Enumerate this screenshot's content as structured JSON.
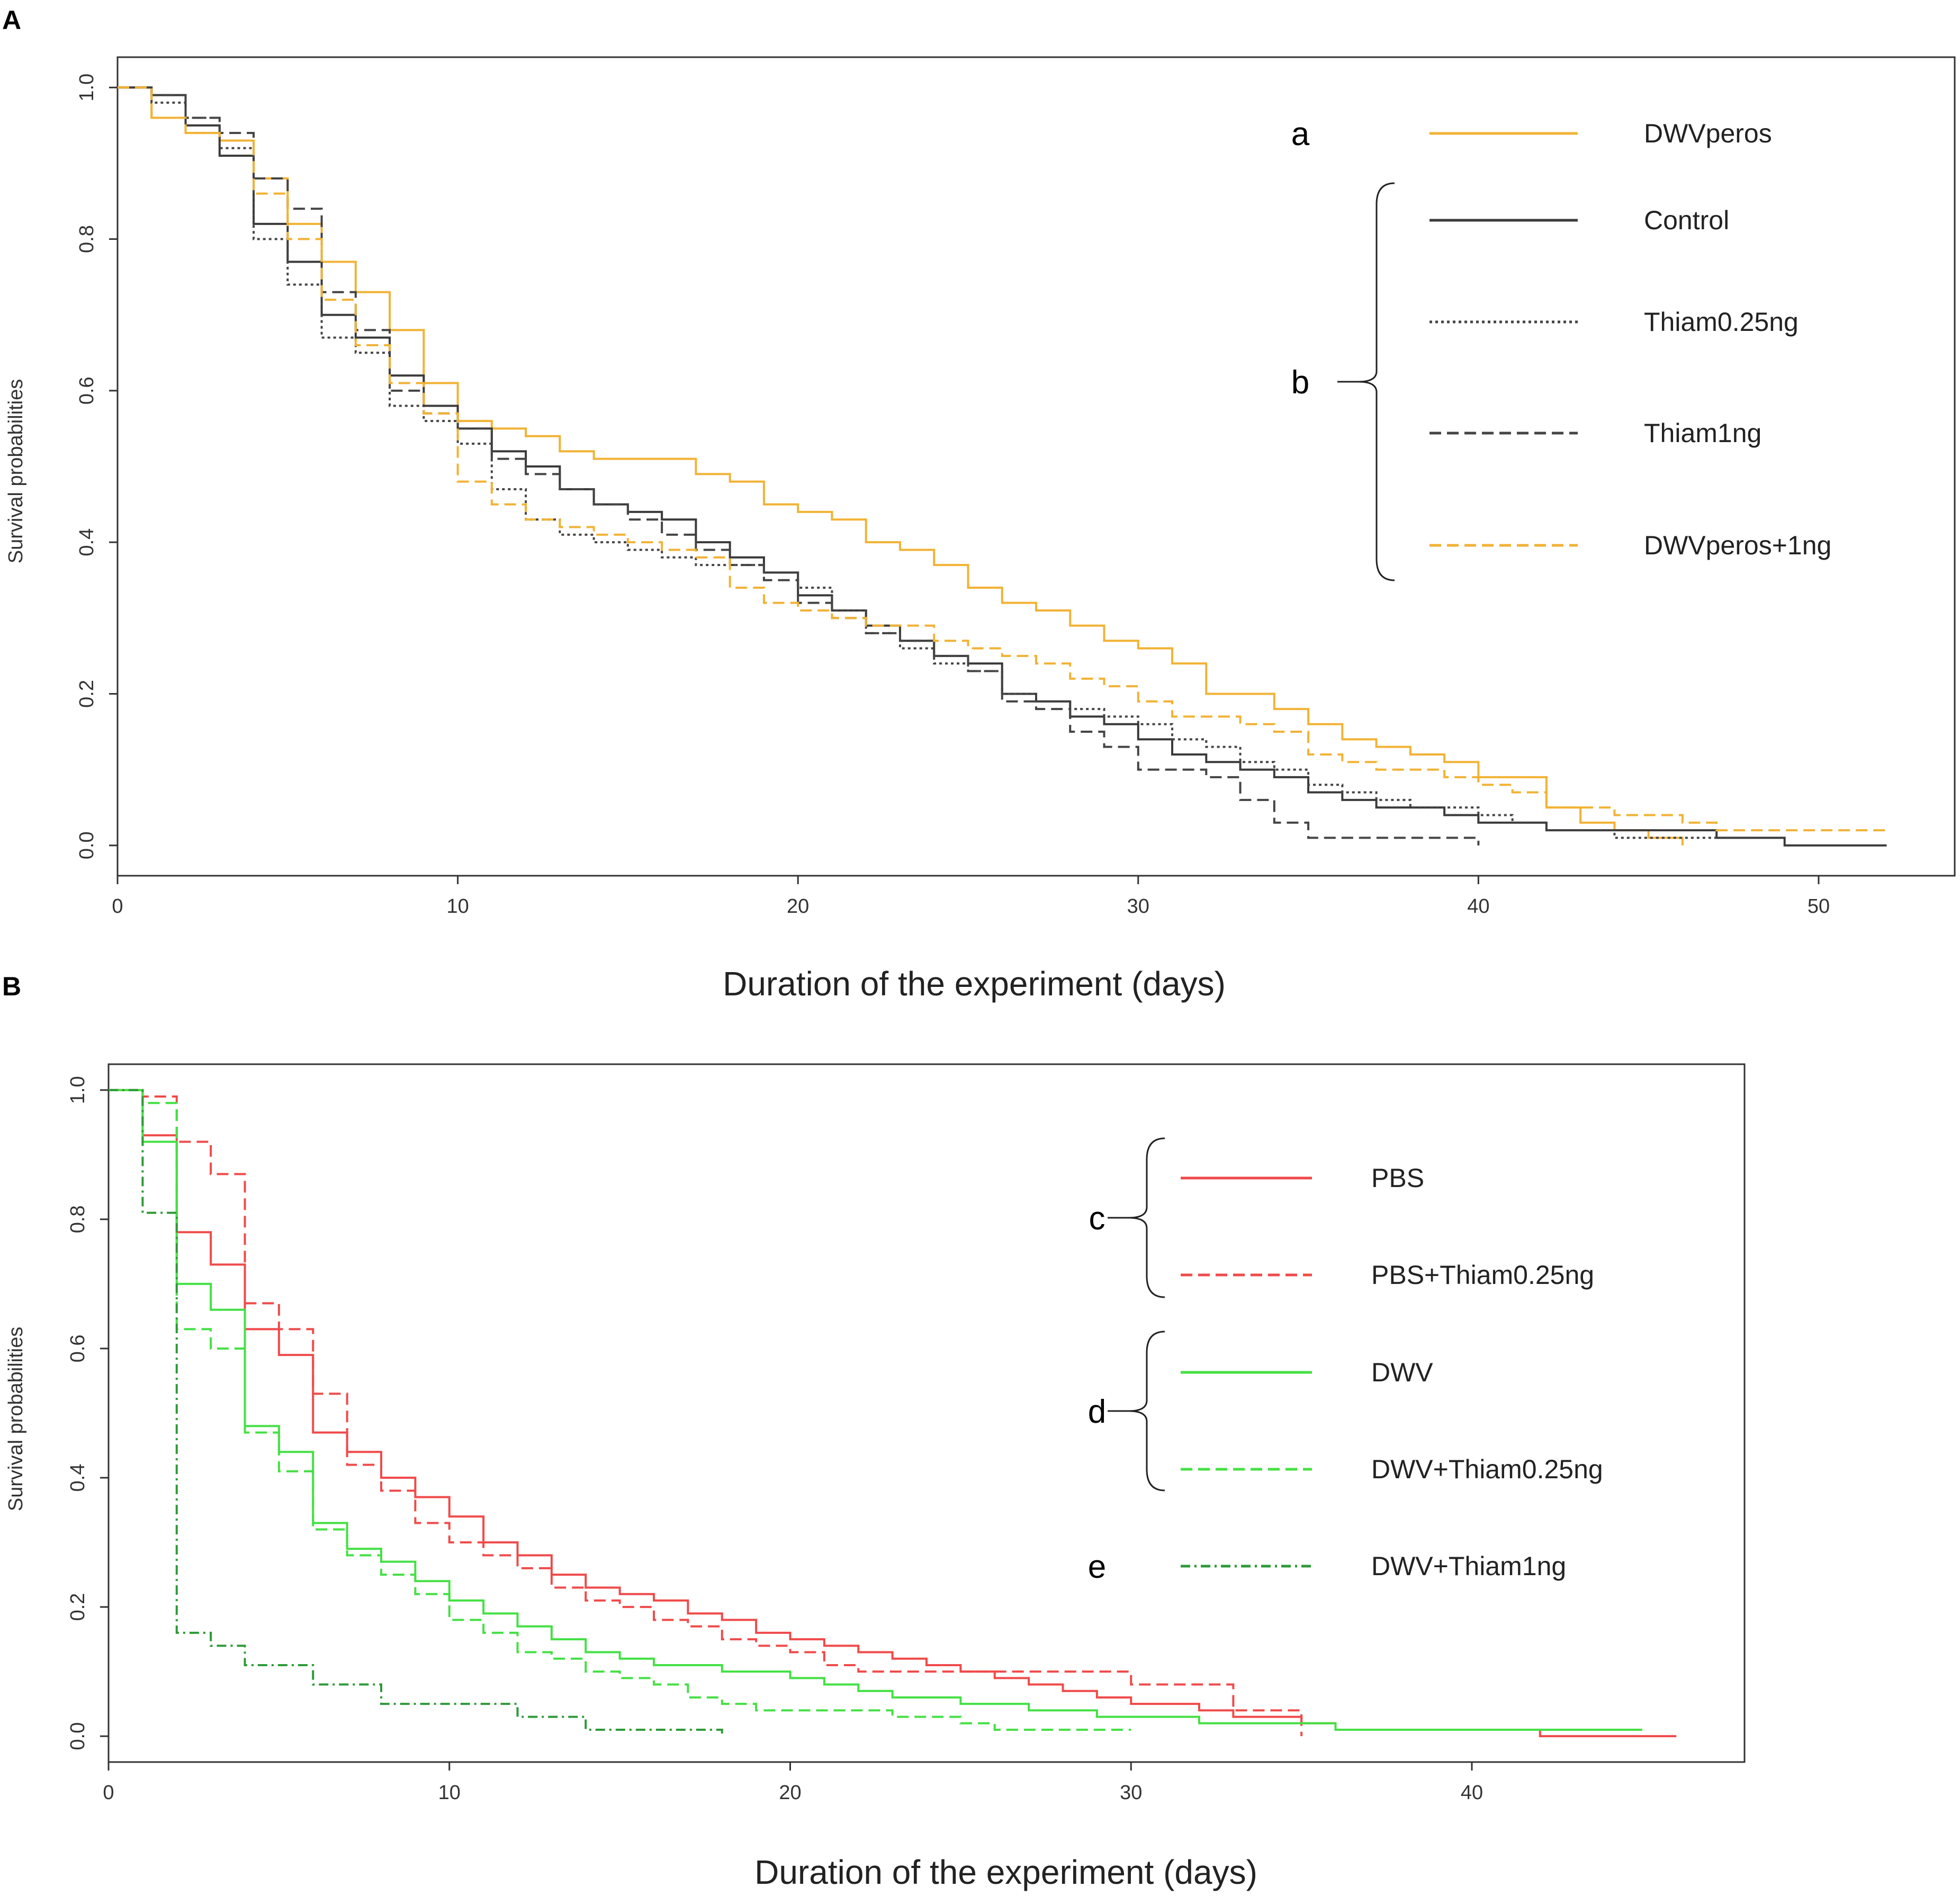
{
  "figure": {
    "panel_a": "A",
    "panel_b": "B"
  },
  "chart_data": [
    {
      "type": "line",
      "panel": "A",
      "xlabel": "Duration of the experiment (days)",
      "ylabel": "Survival probabilities",
      "xlim": [
        0,
        54
      ],
      "ylim": [
        -0.04,
        1.04
      ],
      "xticks": [
        0,
        10,
        20,
        30,
        40,
        50
      ],
      "yticks": [
        0.0,
        0.2,
        0.4,
        0.6,
        0.8,
        1.0
      ],
      "yticklabels": [
        "0.0",
        "0.2",
        "0.4",
        "0.6",
        "0.8",
        "1.0"
      ],
      "legend_position": "top-right",
      "groups": [
        {
          "label": "a",
          "members": [
            0
          ]
        },
        {
          "label": "b",
          "members": [
            1,
            2,
            3,
            4
          ]
        }
      ],
      "series": [
        {
          "name": "DWVperos",
          "color": "#f2b234",
          "style": "solid",
          "x": [
            0,
            1,
            2,
            3,
            4,
            5,
            6,
            7,
            8,
            9,
            10,
            11,
            12,
            13,
            14,
            15,
            16,
            17,
            18,
            19,
            20,
            21,
            22,
            23,
            24,
            25,
            26,
            27,
            28,
            29,
            30,
            31,
            32,
            33,
            34,
            35,
            36,
            37,
            38,
            39,
            40,
            41,
            42,
            43,
            44,
            45,
            46
          ],
          "y": [
            1.0,
            0.96,
            0.94,
            0.93,
            0.88,
            0.82,
            0.77,
            0.73,
            0.68,
            0.61,
            0.56,
            0.55,
            0.54,
            0.52,
            0.51,
            0.51,
            0.51,
            0.49,
            0.48,
            0.45,
            0.44,
            0.43,
            0.4,
            0.39,
            0.37,
            0.34,
            0.32,
            0.31,
            0.29,
            0.27,
            0.26,
            0.24,
            0.2,
            0.2,
            0.18,
            0.16,
            0.14,
            0.13,
            0.12,
            0.11,
            0.09,
            0.09,
            0.05,
            0.03,
            0.02,
            0.01,
            0.0
          ]
        },
        {
          "name": "Control",
          "color": "#3a3a3a",
          "style": "solid",
          "x": [
            0,
            1,
            2,
            3,
            4,
            5,
            6,
            7,
            8,
            9,
            10,
            11,
            12,
            13,
            14,
            15,
            16,
            17,
            18,
            19,
            20,
            21,
            22,
            23,
            24,
            25,
            26,
            27,
            28,
            29,
            30,
            31,
            32,
            33,
            34,
            35,
            36,
            37,
            38,
            39,
            40,
            41,
            42,
            43,
            44,
            45,
            46,
            47,
            48,
            49,
            50,
            51,
            52
          ],
          "y": [
            1.0,
            0.99,
            0.95,
            0.91,
            0.82,
            0.77,
            0.7,
            0.67,
            0.62,
            0.58,
            0.55,
            0.52,
            0.5,
            0.47,
            0.45,
            0.44,
            0.43,
            0.4,
            0.38,
            0.36,
            0.33,
            0.31,
            0.29,
            0.27,
            0.25,
            0.24,
            0.2,
            0.19,
            0.17,
            0.16,
            0.14,
            0.12,
            0.11,
            0.1,
            0.09,
            0.07,
            0.06,
            0.05,
            0.05,
            0.04,
            0.03,
            0.03,
            0.02,
            0.02,
            0.02,
            0.02,
            0.02,
            0.01,
            0.01,
            0.0,
            0.0,
            0.0,
            0.0
          ]
        },
        {
          "name": "Thiam0.25ng",
          "color": "#444444",
          "style": "dotted",
          "x": [
            0,
            1,
            2,
            3,
            4,
            5,
            6,
            7,
            8,
            9,
            10,
            11,
            12,
            13,
            14,
            15,
            16,
            17,
            18,
            19,
            20,
            21,
            22,
            23,
            24,
            25,
            26,
            27,
            28,
            29,
            30,
            31,
            32,
            33,
            34,
            35,
            36,
            37,
            38,
            39,
            40,
            41,
            42,
            43,
            44,
            45,
            46,
            47,
            48
          ],
          "y": [
            1.0,
            0.98,
            0.96,
            0.92,
            0.8,
            0.74,
            0.67,
            0.65,
            0.58,
            0.56,
            0.53,
            0.47,
            0.43,
            0.41,
            0.4,
            0.39,
            0.38,
            0.37,
            0.37,
            0.36,
            0.34,
            0.31,
            0.28,
            0.26,
            0.24,
            0.23,
            0.2,
            0.19,
            0.18,
            0.17,
            0.16,
            0.14,
            0.13,
            0.11,
            0.1,
            0.08,
            0.07,
            0.06,
            0.05,
            0.05,
            0.04,
            0.03,
            0.02,
            0.02,
            0.01,
            0.01,
            0.01,
            0.01,
            0.01
          ]
        },
        {
          "name": "Thiam1ng",
          "color": "#444444",
          "style": "dashed",
          "x": [
            0,
            1,
            2,
            3,
            4,
            5,
            6,
            7,
            8,
            9,
            10,
            11,
            12,
            13,
            14,
            15,
            16,
            17,
            18,
            19,
            20,
            21,
            22,
            23,
            24,
            25,
            26,
            27,
            28,
            29,
            30,
            31,
            32,
            33,
            34,
            35,
            36,
            37,
            38,
            39,
            40
          ],
          "y": [
            1.0,
            0.99,
            0.96,
            0.94,
            0.88,
            0.84,
            0.73,
            0.68,
            0.6,
            0.57,
            0.55,
            0.51,
            0.49,
            0.47,
            0.45,
            0.43,
            0.41,
            0.39,
            0.37,
            0.35,
            0.32,
            0.3,
            0.28,
            0.27,
            0.25,
            0.23,
            0.19,
            0.18,
            0.15,
            0.13,
            0.1,
            0.1,
            0.09,
            0.06,
            0.03,
            0.01,
            0.01,
            0.01,
            0.01,
            0.01,
            0.0
          ]
        },
        {
          "name": "DWVperos+1ng",
          "color": "#f2b234",
          "style": "dashed",
          "x": [
            0,
            1,
            2,
            3,
            4,
            5,
            6,
            7,
            8,
            9,
            10,
            11,
            12,
            13,
            14,
            15,
            16,
            17,
            18,
            19,
            20,
            21,
            22,
            23,
            24,
            25,
            26,
            27,
            28,
            29,
            30,
            31,
            32,
            33,
            34,
            35,
            36,
            37,
            38,
            39,
            40,
            41,
            42,
            43,
            44,
            45,
            46,
            47,
            48,
            49,
            50,
            51,
            52
          ],
          "y": [
            1.0,
            0.96,
            0.94,
            0.93,
            0.86,
            0.8,
            0.72,
            0.66,
            0.61,
            0.57,
            0.48,
            0.45,
            0.43,
            0.42,
            0.41,
            0.4,
            0.39,
            0.38,
            0.34,
            0.32,
            0.31,
            0.3,
            0.29,
            0.29,
            0.27,
            0.26,
            0.25,
            0.24,
            0.22,
            0.21,
            0.19,
            0.17,
            0.17,
            0.16,
            0.15,
            0.12,
            0.11,
            0.1,
            0.1,
            0.09,
            0.08,
            0.07,
            0.05,
            0.05,
            0.04,
            0.04,
            0.03,
            0.02,
            0.02,
            0.02,
            0.02,
            0.02,
            0.02
          ]
        }
      ]
    },
    {
      "type": "line",
      "panel": "B",
      "xlabel": "Duration of the experiment (days)",
      "ylabel": "Survival probabilities",
      "xlim": [
        0,
        48
      ],
      "ylim": [
        -0.04,
        1.04
      ],
      "xticks": [
        0,
        10,
        20,
        30,
        40
      ],
      "yticks": [
        0.0,
        0.2,
        0.4,
        0.6,
        0.8,
        1.0
      ],
      "yticklabels": [
        "0.0",
        "0.2",
        "0.4",
        "0.6",
        "0.8",
        "1.0"
      ],
      "legend_position": "right",
      "groups": [
        {
          "label": "c",
          "members": [
            0,
            1
          ]
        },
        {
          "label": "d",
          "members": [
            2,
            3
          ]
        },
        {
          "label": "e",
          "members": [
            4
          ]
        }
      ],
      "series": [
        {
          "name": "PBS",
          "color": "#f04a4a",
          "style": "solid",
          "x": [
            0,
            1,
            2,
            3,
            4,
            5,
            6,
            7,
            8,
            9,
            10,
            11,
            12,
            13,
            14,
            15,
            16,
            17,
            18,
            19,
            20,
            21,
            22,
            23,
            24,
            25,
            26,
            27,
            28,
            29,
            30,
            31,
            32,
            33,
            34,
            35,
            36,
            37,
            38,
            39,
            40,
            41,
            42,
            43,
            44,
            45,
            46
          ],
          "y": [
            1.0,
            0.93,
            0.78,
            0.73,
            0.63,
            0.59,
            0.47,
            0.44,
            0.4,
            0.37,
            0.34,
            0.3,
            0.28,
            0.25,
            0.23,
            0.22,
            0.21,
            0.19,
            0.18,
            0.16,
            0.15,
            0.14,
            0.13,
            0.12,
            0.11,
            0.1,
            0.09,
            0.08,
            0.07,
            0.06,
            0.05,
            0.05,
            0.04,
            0.03,
            0.03,
            0.02,
            0.01,
            0.01,
            0.01,
            0.01,
            0.01,
            0.01,
            0.0,
            0.0,
            0.0,
            0.0,
            0.0
          ]
        },
        {
          "name": "PBS+Thiam0.25ng",
          "color": "#f04a4a",
          "style": "dashed",
          "x": [
            0,
            1,
            2,
            3,
            4,
            5,
            6,
            7,
            8,
            9,
            10,
            11,
            12,
            13,
            14,
            15,
            16,
            17,
            18,
            19,
            20,
            21,
            22,
            23,
            24,
            25,
            26,
            27,
            28,
            29,
            30,
            31,
            32,
            33,
            34,
            35
          ],
          "y": [
            1.0,
            0.99,
            0.92,
            0.87,
            0.67,
            0.63,
            0.53,
            0.42,
            0.38,
            0.33,
            0.3,
            0.28,
            0.26,
            0.23,
            0.21,
            0.2,
            0.18,
            0.17,
            0.15,
            0.14,
            0.13,
            0.11,
            0.1,
            0.1,
            0.1,
            0.1,
            0.1,
            0.1,
            0.1,
            0.1,
            0.08,
            0.08,
            0.08,
            0.04,
            0.04,
            0.0
          ]
        },
        {
          "name": "DWV",
          "color": "#44e044",
          "style": "solid",
          "x": [
            0,
            1,
            2,
            3,
            4,
            5,
            6,
            7,
            8,
            9,
            10,
            11,
            12,
            13,
            14,
            15,
            16,
            17,
            18,
            19,
            20,
            21,
            22,
            23,
            24,
            25,
            26,
            27,
            28,
            29,
            30,
            31,
            32,
            33,
            34,
            35,
            36,
            37,
            38,
            39,
            40,
            41,
            42,
            43,
            44,
            45
          ],
          "y": [
            1.0,
            0.92,
            0.7,
            0.66,
            0.48,
            0.44,
            0.33,
            0.29,
            0.27,
            0.24,
            0.21,
            0.19,
            0.17,
            0.15,
            0.13,
            0.12,
            0.11,
            0.11,
            0.1,
            0.1,
            0.09,
            0.08,
            0.07,
            0.06,
            0.06,
            0.05,
            0.05,
            0.04,
            0.04,
            0.03,
            0.03,
            0.03,
            0.02,
            0.02,
            0.02,
            0.02,
            0.01,
            0.01,
            0.01,
            0.01,
            0.01,
            0.01,
            0.01,
            0.01,
            0.01,
            0.01
          ]
        },
        {
          "name": "DWV+Thiam0.25ng",
          "color": "#44e044",
          "style": "dashed",
          "x": [
            0,
            1,
            2,
            3,
            4,
            5,
            6,
            7,
            8,
            9,
            10,
            11,
            12,
            13,
            14,
            15,
            16,
            17,
            18,
            19,
            20,
            21,
            22,
            23,
            24,
            25,
            26,
            27,
            28,
            29,
            30
          ],
          "y": [
            1.0,
            0.98,
            0.63,
            0.6,
            0.47,
            0.41,
            0.32,
            0.28,
            0.25,
            0.22,
            0.18,
            0.16,
            0.13,
            0.12,
            0.1,
            0.09,
            0.08,
            0.06,
            0.05,
            0.04,
            0.04,
            0.04,
            0.04,
            0.03,
            0.03,
            0.02,
            0.01,
            0.01,
            0.01,
            0.01,
            0.01
          ]
        },
        {
          "name": "DWV+Thiam1ng",
          "color": "#2e9a38",
          "style": "dashdot",
          "x": [
            0,
            1,
            2,
            3,
            4,
            5,
            6,
            7,
            8,
            9,
            10,
            11,
            12,
            13,
            14,
            15,
            16,
            17,
            18
          ],
          "y": [
            1.0,
            0.81,
            0.16,
            0.14,
            0.11,
            0.11,
            0.08,
            0.08,
            0.05,
            0.05,
            0.05,
            0.05,
            0.03,
            0.03,
            0.01,
            0.01,
            0.01,
            0.01,
            0.0
          ]
        }
      ]
    }
  ]
}
